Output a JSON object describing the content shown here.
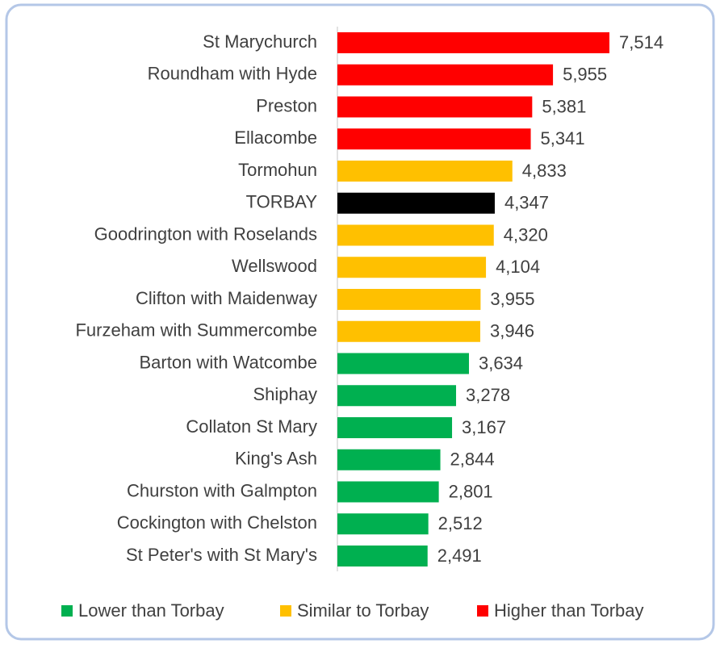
{
  "chart_data": {
    "type": "hbar",
    "categories": [
      "St Marychurch",
      "Roundham with Hyde",
      "Preston",
      "Ellacombe",
      "Tormohun",
      "TORBAY",
      "Goodrington with Roselands",
      "Wellswood",
      "Clifton with Maidenway",
      "Furzeham with Summercombe",
      "Barton with Watcombe",
      "Shiphay",
      "Collaton St Mary",
      "King's Ash",
      "Churston with Galmpton",
      "Cockington with Chelston",
      "St Peter's with St Mary's"
    ],
    "values": [
      7514,
      5955,
      5381,
      5341,
      4833,
      4347,
      4320,
      4104,
      3955,
      3946,
      3634,
      3278,
      3167,
      2844,
      2801,
      2512,
      2491
    ],
    "value_labels": [
      "7,514",
      "5,955",
      "5,381",
      "5,341",
      "4,833",
      "4,347",
      "4,320",
      "4,104",
      "3,955",
      "3,946",
      "3,634",
      "3,278",
      "3,167",
      "2,844",
      "2,801",
      "2,512",
      "2,491"
    ],
    "colors": [
      "#ff0000",
      "#ff0000",
      "#ff0000",
      "#ff0000",
      "#ffc000",
      "#000000",
      "#ffc000",
      "#ffc000",
      "#ffc000",
      "#ffc000",
      "#00b050",
      "#00b050",
      "#00b050",
      "#00b050",
      "#00b050",
      "#00b050",
      "#00b050"
    ],
    "legend": [
      {
        "name": "Lower than Torbay",
        "color": "#00b050"
      },
      {
        "name": "Similar to Torbay",
        "color": "#ffc000"
      },
      {
        "name": "Higher than Torbay",
        "color": "#ff0000"
      }
    ]
  }
}
